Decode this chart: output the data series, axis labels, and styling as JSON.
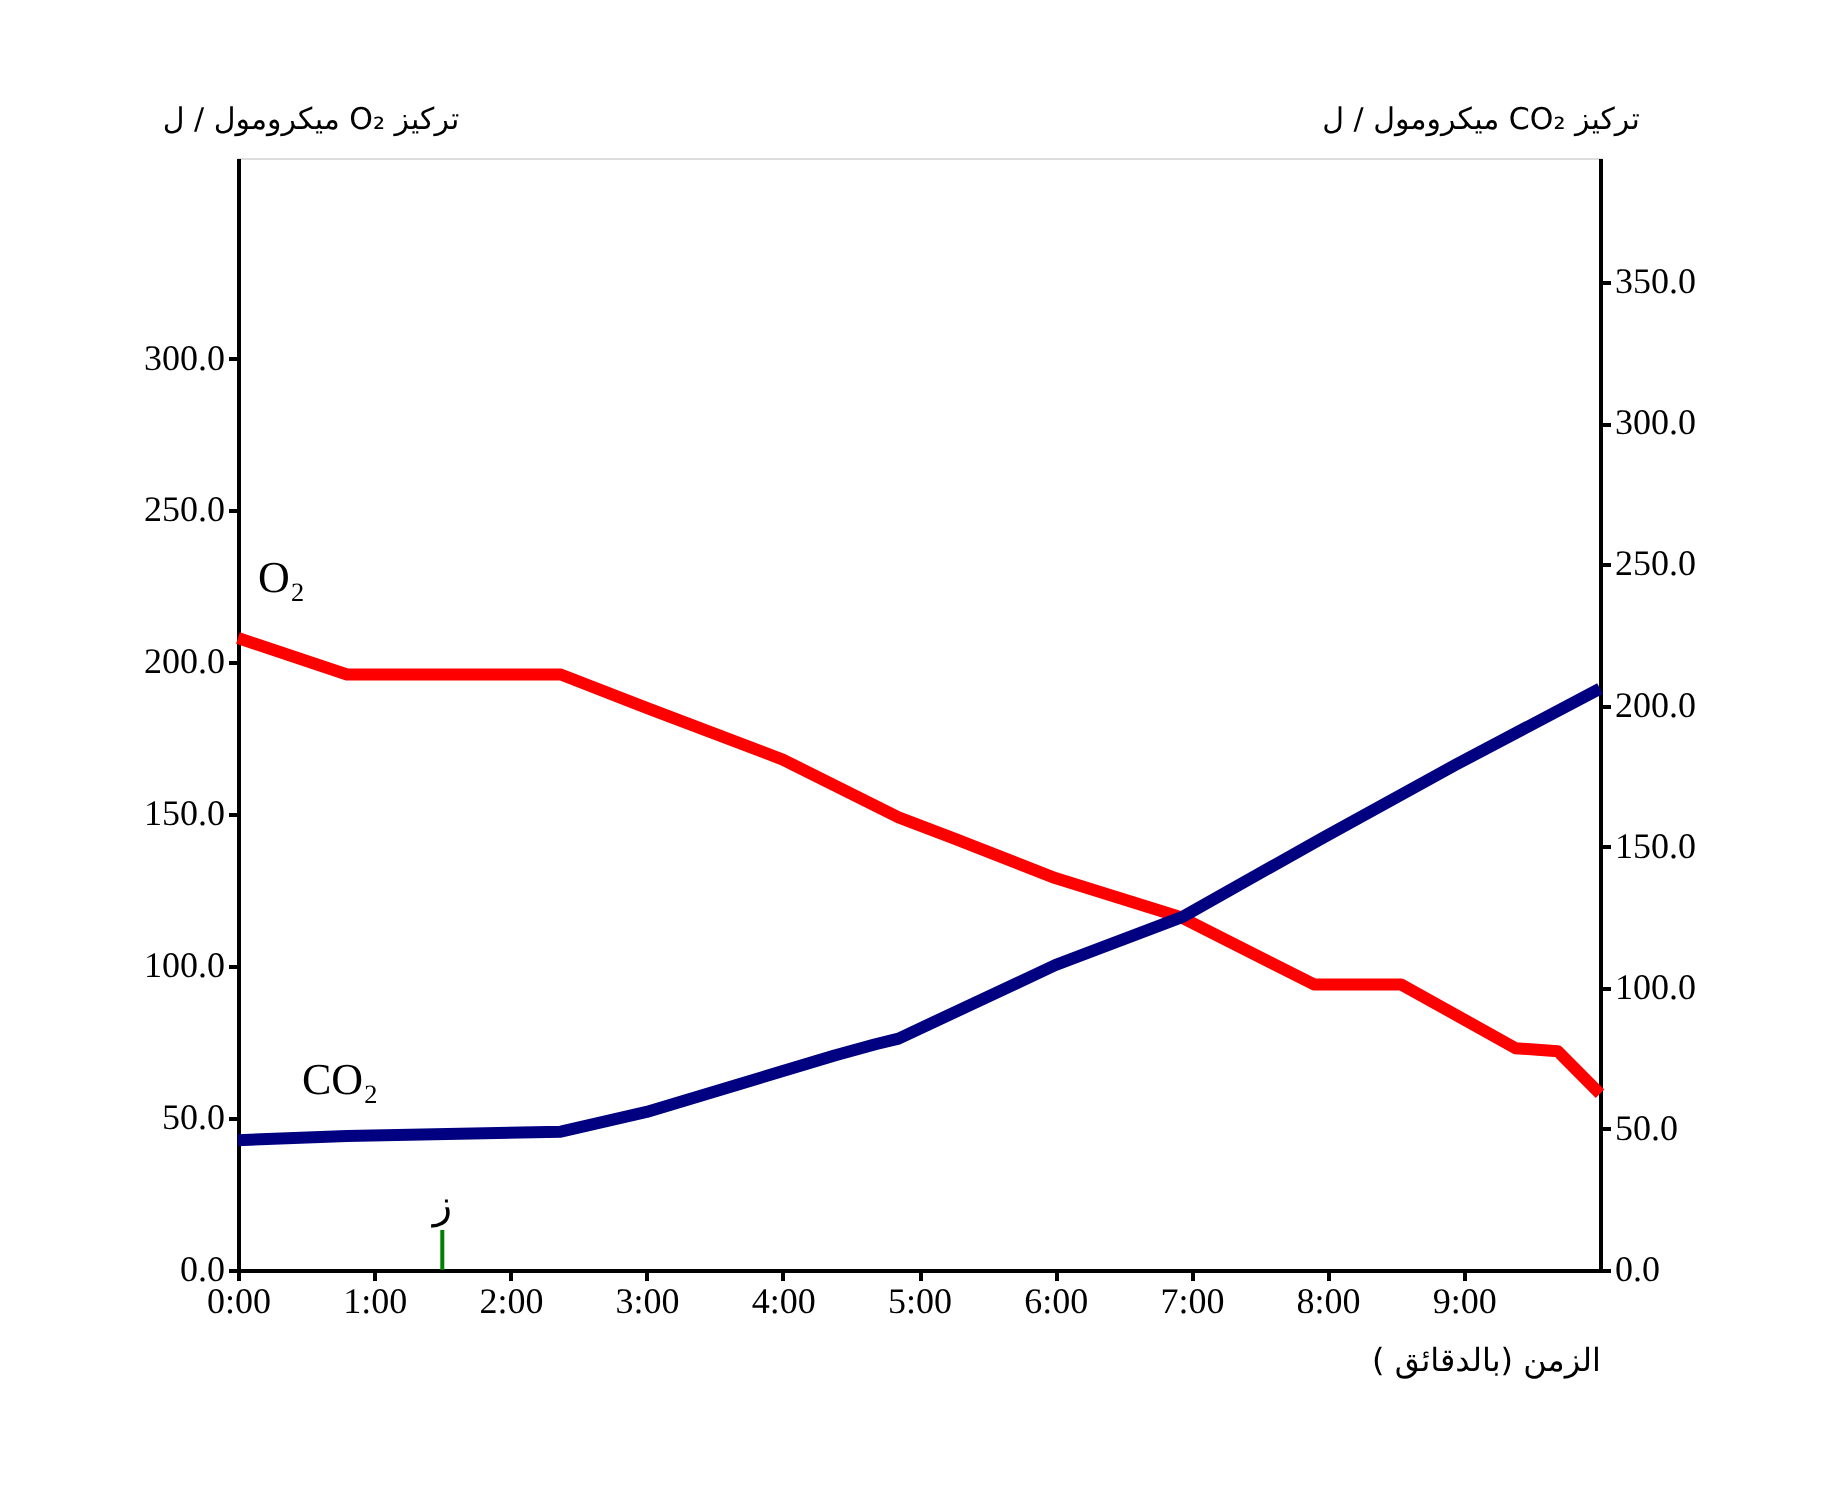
{
  "chart_data": {
    "type": "line",
    "xlabel": "الزمن (بالدقائق )",
    "ylabel": "تركيز O₂ ميكرومول / ل",
    "y2label": "تركيز CO₂ ميكرومول / ل",
    "xlim": [
      0,
      10
    ],
    "xticks": [
      {
        "value": 0,
        "label": "0:00"
      },
      {
        "value": 1,
        "label": "1:00"
      },
      {
        "value": 2,
        "label": "2:00"
      },
      {
        "value": 3,
        "label": "3:00"
      },
      {
        "value": 4,
        "label": "4:00"
      },
      {
        "value": 5,
        "label": "5:00"
      },
      {
        "value": 6,
        "label": "6:00"
      },
      {
        "value": 7,
        "label": "7:00"
      },
      {
        "value": 8,
        "label": "8:00"
      },
      {
        "value": 9,
        "label": "9:00"
      }
    ],
    "ylim": [
      0,
      366
    ],
    "yticks": [
      {
        "value": 0,
        "label": "0.0"
      },
      {
        "value": 50,
        "label": "50.0"
      },
      {
        "value": 100,
        "label": "100.0"
      },
      {
        "value": 150,
        "label": "150.0"
      },
      {
        "value": 200,
        "label": "200.0"
      },
      {
        "value": 250,
        "label": "250.0"
      },
      {
        "value": 300,
        "label": "300.0"
      }
    ],
    "y2lim": [
      0,
      394
    ],
    "y2ticks": [
      {
        "value": 0,
        "label": "0.0"
      },
      {
        "value": 50,
        "label": "50.0"
      },
      {
        "value": 100,
        "label": "100.0"
      },
      {
        "value": 150,
        "label": "150.0"
      },
      {
        "value": 200,
        "label": "200.0"
      },
      {
        "value": 250,
        "label": "250.0"
      },
      {
        "value": 300,
        "label": "300.0"
      },
      {
        "value": 350,
        "label": "350.0"
      }
    ],
    "grid": false,
    "series": [
      {
        "name": "O₂",
        "color": "#ff0000",
        "x": [
          0,
          0.8,
          2.37,
          3,
          4,
          4.85,
          5.26,
          6,
          6.93,
          7.9,
          8.54,
          9.38,
          9.69,
          10
        ],
        "values": [
          208,
          196,
          196,
          185,
          168,
          149,
          142,
          129,
          116,
          94,
          94,
          73,
          72,
          58
        ]
      },
      {
        "name": "CO₂",
        "color": "#000080",
        "axis": "y2",
        "x": [
          0,
          0.8,
          2.37,
          3,
          4.38,
          4.68,
          4.85,
          6,
          6.93,
          7.96,
          8.94,
          10
        ],
        "values": [
          46,
          47.5,
          49,
          56,
          76,
          80,
          82,
          108,
          125,
          153,
          179,
          206
        ]
      }
    ],
    "ref_lines": [
      {
        "axis": "x",
        "value": 1.5,
        "label": "ز",
        "color": "#008000"
      }
    ]
  }
}
